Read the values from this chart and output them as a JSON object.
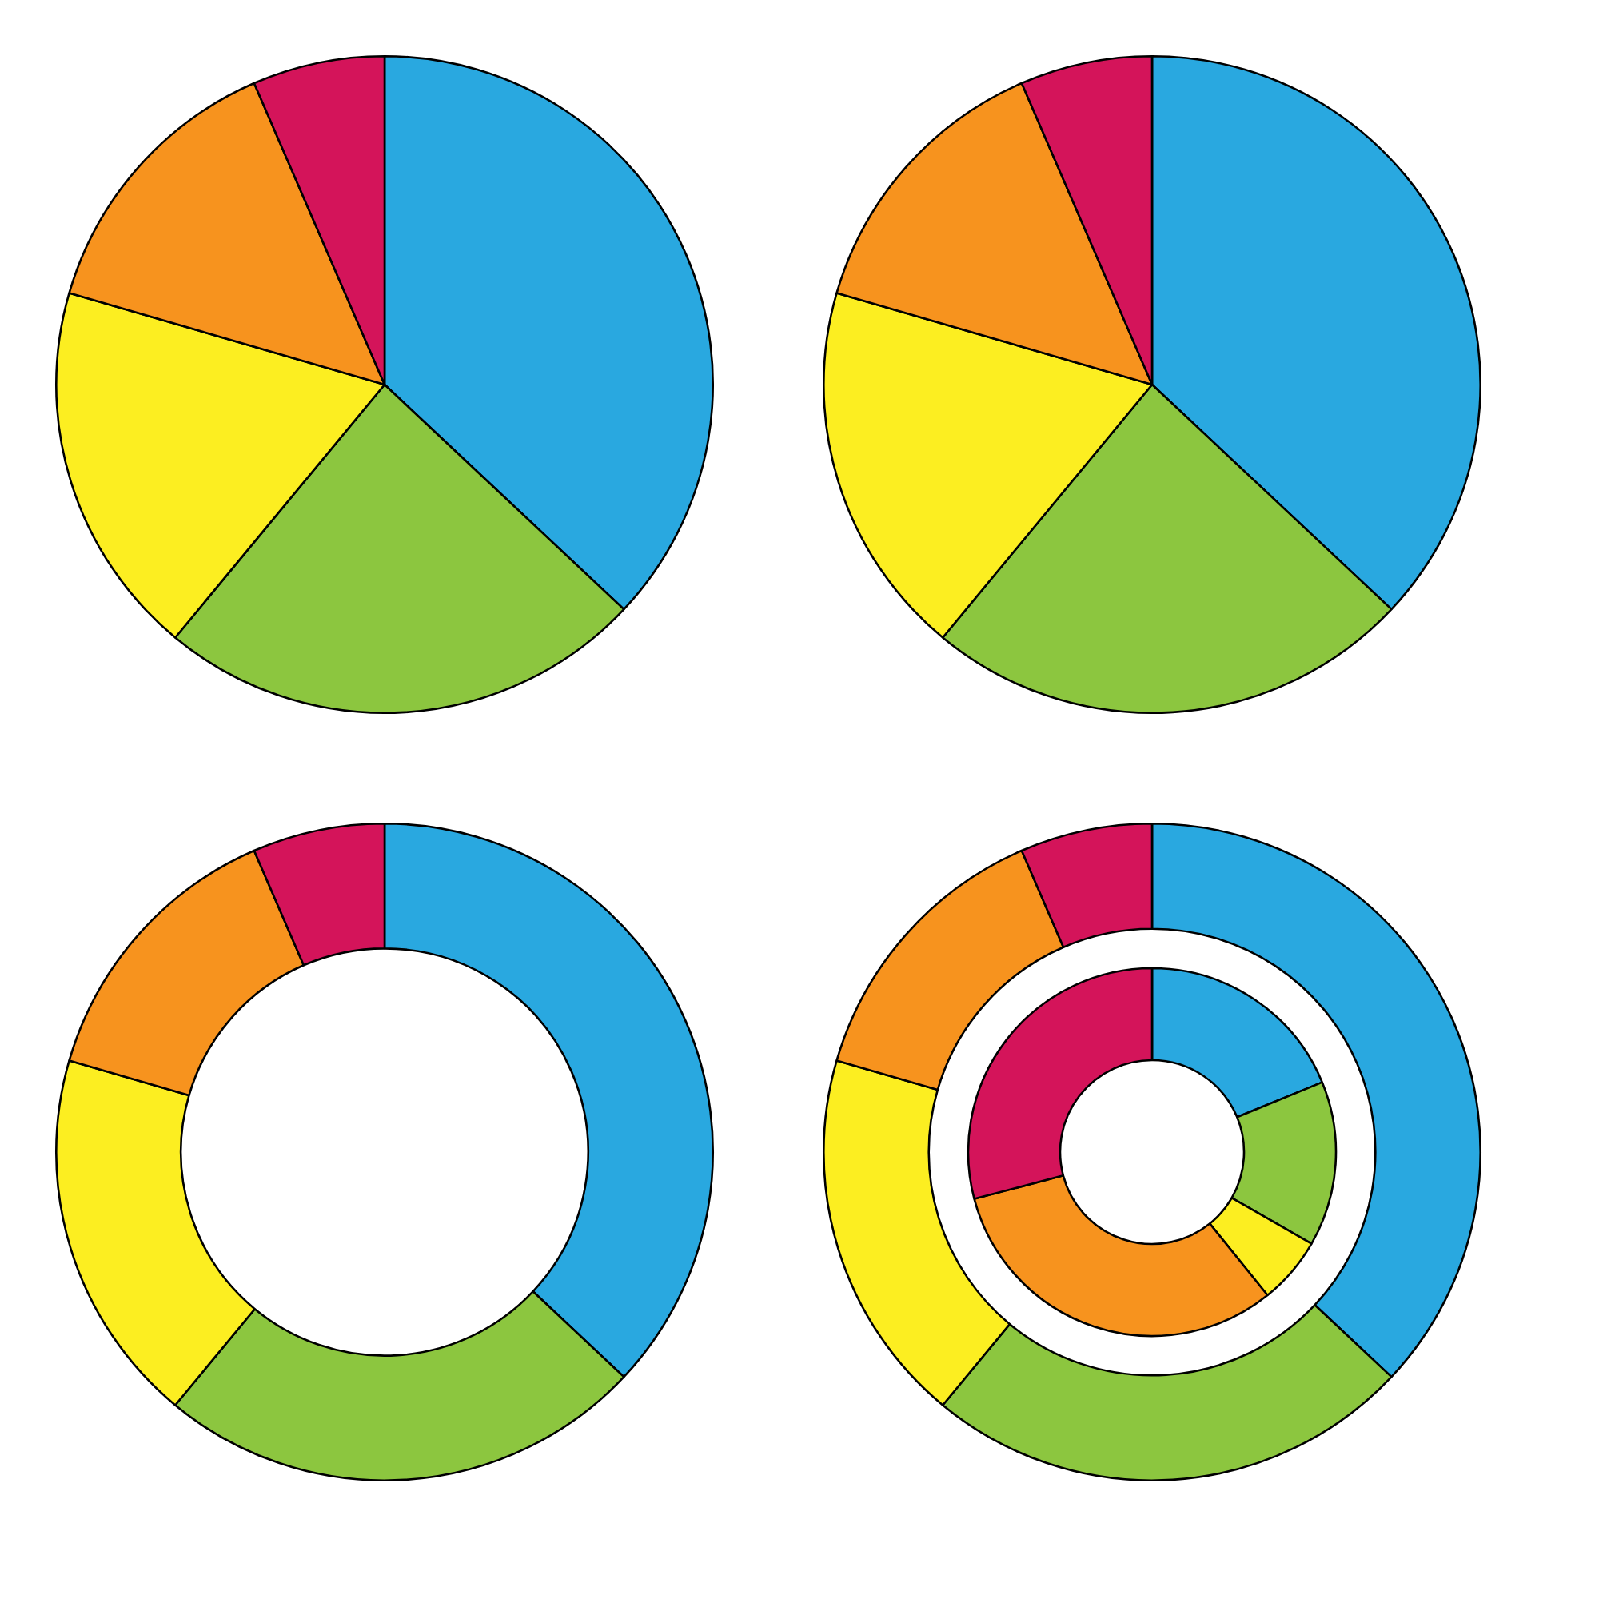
{
  "chart_data": [
    {
      "type": "pie",
      "categories": [
        null,
        null,
        null,
        null,
        null
      ],
      "values": [
        37,
        24,
        18.5,
        14,
        6.5
      ],
      "colors": [
        "#29a8e0",
        "#8cc63f",
        "#fcee21",
        "#f7931e",
        "#d4145a"
      ]
    },
    {
      "type": "pie",
      "categories": [
        null,
        null,
        null,
        null,
        null
      ],
      "values": [
        37,
        24,
        18.5,
        14,
        6.5
      ],
      "colors": [
        "#29a8e0",
        "#8cc63f",
        "#fcee21",
        "#f7931e",
        "#d4145a"
      ]
    },
    {
      "type": "donut",
      "categories": [
        null,
        null,
        null,
        null,
        null
      ],
      "values": [
        37,
        24,
        18.5,
        14,
        6.5
      ],
      "colors": [
        "#29a8e0",
        "#8cc63f",
        "#fcee21",
        "#f7931e",
        "#d4145a"
      ]
    },
    {
      "type": "donut",
      "categories": [
        null,
        null,
        null,
        null,
        null
      ],
      "series": [
        {
          "values": [
            37,
            24,
            18.5,
            14,
            6.5
          ],
          "colors": [
            "#29a8e0",
            "#8cc63f",
            "#fcee21",
            "#f7931e",
            "#d4145a"
          ]
        },
        {
          "values": [
            18.8,
            14.5,
            5.9,
            31.7,
            29.1
          ],
          "colors": [
            "#29a8e0",
            "#8cc63f",
            "#fcee21",
            "#f7931e",
            "#d4145a"
          ]
        }
      ]
    }
  ]
}
